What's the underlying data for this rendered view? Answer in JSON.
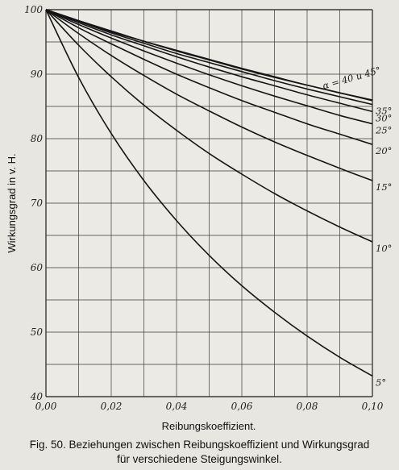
{
  "chart_data": {
    "type": "line",
    "xlabel": "Reibungskoeffizient.",
    "ylabel": "Wirkungsgrad in v. H.",
    "xlim": [
      0,
      0.1
    ],
    "ylim": [
      40,
      100
    ],
    "x_ticks": [
      "0,00",
      "0,02",
      "0,04",
      "0,06",
      "0,08",
      "0,10"
    ],
    "y_ticks": [
      "40",
      "50",
      "60",
      "70",
      "80",
      "90",
      "100"
    ],
    "grid": true,
    "series": [
      {
        "name": "5°",
        "x": [
          0,
          0.01,
          0.02,
          0.03,
          0.04,
          0.05,
          0.06,
          0.07,
          0.08,
          0.09,
          0.1
        ],
        "y": [
          100,
          89.5,
          80.8,
          73.5,
          67.3,
          61.9,
          57.2,
          53.1,
          49.4,
          46.1,
          43.2
        ]
      },
      {
        "name": "10°",
        "x": [
          0,
          0.01,
          0.02,
          0.03,
          0.04,
          0.05,
          0.06,
          0.07,
          0.08,
          0.09,
          0.1
        ],
        "y": [
          100,
          94.5,
          89.6,
          85.2,
          81.3,
          77.7,
          74.5,
          71.5,
          68.8,
          66.3,
          64.0
        ]
      },
      {
        "name": "15°",
        "x": [
          0,
          0.01,
          0.02,
          0.03,
          0.04,
          0.05,
          0.06,
          0.07,
          0.08,
          0.09,
          0.1
        ],
        "y": [
          100,
          96.3,
          92.9,
          89.8,
          86.9,
          84.3,
          81.8,
          79.5,
          77.4,
          75.4,
          73.5
        ]
      },
      {
        "name": "20°",
        "x": [
          0,
          0.01,
          0.02,
          0.03,
          0.04,
          0.05,
          0.06,
          0.07,
          0.08,
          0.09,
          0.1
        ],
        "y": [
          100,
          97.2,
          94.7,
          92.3,
          90.0,
          87.9,
          85.9,
          84.1,
          82.3,
          80.7,
          79.1
        ]
      },
      {
        "name": "25°",
        "x": [
          0,
          0.01,
          0.02,
          0.03,
          0.04,
          0.05,
          0.06,
          0.07,
          0.08,
          0.09,
          0.1
        ],
        "y": [
          100,
          97.7,
          95.6,
          93.6,
          91.7,
          89.9,
          88.2,
          86.6,
          85.1,
          83.6,
          82.3
        ]
      },
      {
        "name": "30°",
        "x": [
          0,
          0.01,
          0.02,
          0.03,
          0.04,
          0.05,
          0.06,
          0.07,
          0.08,
          0.09,
          0.1
        ],
        "y": [
          100,
          98.0,
          96.1,
          94.4,
          92.7,
          91.1,
          89.6,
          88.2,
          86.8,
          85.5,
          84.2
        ]
      },
      {
        "name": "35°",
        "x": [
          0,
          0.01,
          0.02,
          0.03,
          0.04,
          0.05,
          0.06,
          0.07,
          0.08,
          0.09,
          0.1
        ],
        "y": [
          100,
          98.2,
          96.4,
          94.8,
          93.2,
          91.8,
          90.4,
          89.0,
          87.7,
          86.5,
          85.3
        ]
      },
      {
        "name": "40°",
        "x": [
          0,
          0.01,
          0.02,
          0.03,
          0.04,
          0.05,
          0.06,
          0.07,
          0.08,
          0.09,
          0.1
        ],
        "y": [
          100,
          98.3,
          96.6,
          95.1,
          93.6,
          92.2,
          90.8,
          89.5,
          88.3,
          87.1,
          85.9
        ]
      },
      {
        "name": "45°",
        "x": [
          0,
          0.01,
          0.02,
          0.03,
          0.04,
          0.05,
          0.06,
          0.07,
          0.08,
          0.09,
          0.1
        ],
        "y": [
          100,
          98.3,
          96.7,
          95.1,
          93.7,
          92.3,
          90.9,
          89.6,
          88.3,
          87.1,
          86.0
        ]
      }
    ],
    "curve_labels": [
      {
        "text": "α = 40 u 45°",
        "anchor_x": 0.09,
        "anchor_y": 87.4
      },
      {
        "text": "35°",
        "anchor_x": 0.1,
        "anchor_y": 85.3
      },
      {
        "text": "30°",
        "anchor_x": 0.1,
        "anchor_y": 84.2
      },
      {
        "text": "25°",
        "anchor_x": 0.1,
        "anchor_y": 82.3
      },
      {
        "text": "20°",
        "anchor_x": 0.1,
        "anchor_y": 79.1
      },
      {
        "text": "15°",
        "anchor_x": 0.1,
        "anchor_y": 73.5
      },
      {
        "text": "10°",
        "anchor_x": 0.1,
        "anchor_y": 64.0
      },
      {
        "text": "5°",
        "anchor_x": 0.1,
        "anchor_y": 43.2
      }
    ]
  },
  "caption": {
    "line1": "Fig. 50.  Beziehungen zwischen Reibungskoeffizient und Wirkungsgrad",
    "line2": "für verschiedene Steigungswinkel."
  }
}
